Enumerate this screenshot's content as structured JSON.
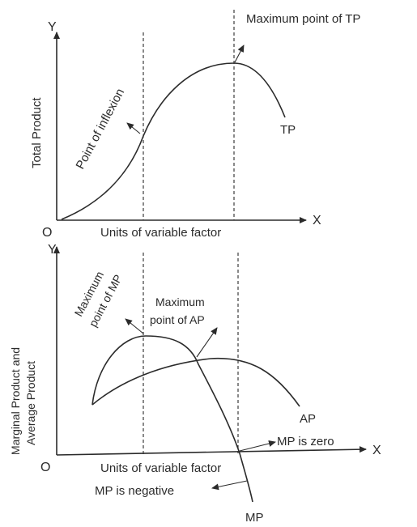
{
  "top_panel": {
    "y_axis_letter": "Y",
    "x_axis_letter": "X",
    "origin": "O",
    "y_axis_label": "Total Product",
    "x_axis_label": "Units of variable factor",
    "curve_label": "TP",
    "annotations": {
      "inflexion": "Point of inflexion",
      "max_tp": "Maximum point of TP"
    }
  },
  "bottom_panel": {
    "y_axis_letter": "Y",
    "x_axis_letter": "X",
    "origin": "O",
    "y_axis_label_line1": "Marginal Product and",
    "y_axis_label_line2": "Average Product",
    "x_axis_label": "Units of variable factor",
    "ap_label": "AP",
    "mp_label": "MP",
    "annotations": {
      "max_mp_line1": "Maximum",
      "max_mp_line2": "point of MP",
      "max_ap_line1": "Maximum",
      "max_ap_line2": "point of AP",
      "mp_zero": "MP is zero",
      "mp_negative": "MP is negative"
    }
  }
}
